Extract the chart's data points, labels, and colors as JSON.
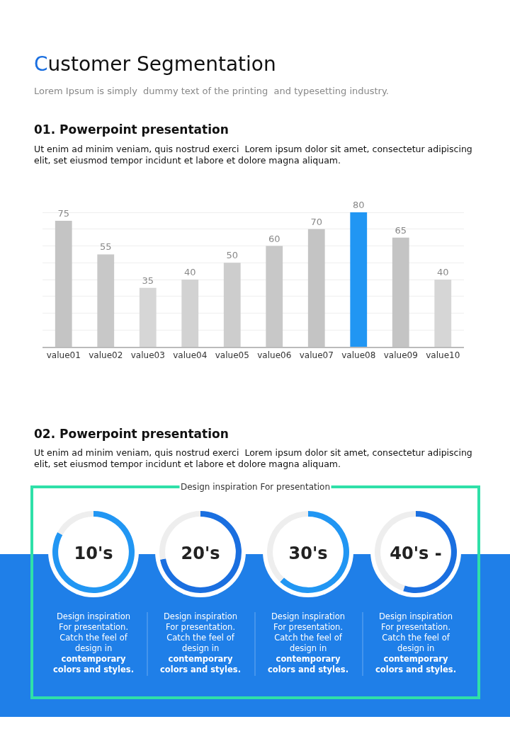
{
  "chart_data": [
    {
      "type": "bar",
      "title": "Customer Segmentation",
      "subtitle": "Lorem Ipsum is simply  dummy text of the printing  and typesetting industry.",
      "annotations": [
        "01. Powerpoint presentation",
        "Ut enim ad minim veniam, quis nostrud exerci  Lorem ipsum dolor sit amet, consectetur adipiscing elit, set eiusmod tempor incidunt et labore et dolore magna aliquam."
      ],
      "categories": [
        "value01",
        "value02",
        "value03",
        "value04",
        "value05",
        "value06",
        "value07",
        "value08",
        "value09",
        "value10"
      ],
      "values": [
        75,
        55,
        35,
        40,
        50,
        60,
        70,
        80,
        65,
        40
      ],
      "colors": [
        "#c4c4c4",
        "#c8c8c8",
        "#d6d6d6",
        "#d2d2d2",
        "#cdcdcd",
        "#c8c8c8",
        "#c4c4c4",
        "#2196f3",
        "#c4c4c4",
        "#d6d6d6"
      ],
      "yticks": [
        {
          "value": 10,
          "label": null
        },
        {
          "value": 20,
          "label": null
        },
        {
          "value": 30,
          "label": null
        },
        {
          "value": 40,
          "label": null
        },
        {
          "value": 50,
          "label": null
        },
        {
          "value": 60,
          "label": null
        },
        {
          "value": 70,
          "label": null
        },
        {
          "value": 80,
          "label": null
        }
      ],
      "grid": "y",
      "data_labels": true,
      "tick_labels": "x"
    },
    {
      "type": "donut",
      "title": "10's",
      "categories": [
        null,
        null
      ],
      "values": [
        83,
        17
      ],
      "colors": [
        "#2196f3",
        "#eeeeee"
      ],
      "annotations": [
        "02. Powerpoint presentation",
        "Ut enim ad minim veniam, quis nostrud exerci  Lorem ipsum dolor sit amet, consectetur adipiscing elit, set eiusmod tempor incidunt et labore et dolore magna aliquam.",
        "Design inspiration For presentation",
        "Design inspiration For presentation. Catch the feel of design in contemporary colors and styles."
      ]
    },
    {
      "type": "donut",
      "title": "20's",
      "categories": [
        null,
        null
      ],
      "values": [
        72,
        28
      ],
      "colors": [
        "#1a6fe0",
        "#eeeeee"
      ],
      "annotations": [
        "Design inspiration For presentation. Catch the feel of design in contemporary colors and styles."
      ]
    },
    {
      "type": "donut",
      "title": "30's",
      "categories": [
        null,
        null
      ],
      "values": [
        62,
        38
      ],
      "colors": [
        "#2196f3",
        "#eeeeee"
      ],
      "annotations": [
        "Design inspiration For presentation. Catch the feel of design in contemporary colors and styles."
      ]
    },
    {
      "type": "donut",
      "title": "40's -",
      "categories": [
        null,
        null
      ],
      "values": [
        55,
        45
      ],
      "colors": [
        "#1a6fe0",
        "#eeeeee"
      ],
      "annotations": [
        "Design inspiration For presentation. Catch the feel of design in contemporary colors and styles."
      ]
    }
  ]
}
